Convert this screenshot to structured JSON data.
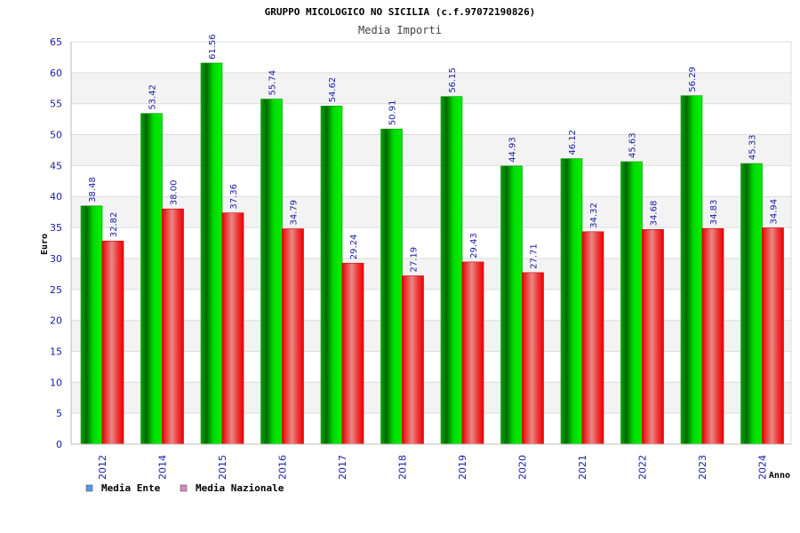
{
  "chart_data": {
    "type": "bar",
    "title": "GRUPPO MICOLOGICO NO SICILIA (c.f.97072190826)",
    "subtitle": "Media Importi",
    "xlabel": "Anno",
    "ylabel": "Euro",
    "ylim": [
      0,
      65
    ],
    "yticks": [
      0,
      5,
      10,
      15,
      20,
      25,
      30,
      35,
      40,
      45,
      50,
      55,
      60,
      65
    ],
    "grid": true,
    "legend_position": "bottom-left",
    "categories": [
      "2012",
      "2014",
      "2015",
      "2016",
      "2017",
      "2018",
      "2019",
      "2020",
      "2021",
      "2022",
      "2023",
      "2024"
    ],
    "series": [
      {
        "name": "Media Ente",
        "color": "#00cc00",
        "legend_color": "#5599ee",
        "values": [
          38.48,
          53.42,
          61.56,
          55.74,
          54.62,
          50.91,
          56.15,
          44.93,
          46.12,
          45.63,
          56.29,
          45.33
        ],
        "labels": [
          "38.48",
          "53.42",
          "61.56",
          "55.74",
          "54.62",
          "50.91",
          "56.15",
          "44.93",
          "46.12",
          "45.63",
          "56.29",
          "45.33"
        ]
      },
      {
        "name": "Media Nazionale",
        "color": "#ee0000",
        "legend_color": "#dd88bb",
        "values": [
          32.82,
          38.0,
          37.36,
          34.79,
          29.24,
          27.19,
          29.43,
          27.71,
          34.32,
          34.68,
          34.83,
          34.94
        ],
        "labels": [
          "32.82",
          "38.00",
          "37.36",
          "34.79",
          "29.24",
          "27.19",
          "29.43",
          "27.71",
          "34.32",
          "34.68",
          "34.83",
          "34.94"
        ]
      }
    ]
  }
}
